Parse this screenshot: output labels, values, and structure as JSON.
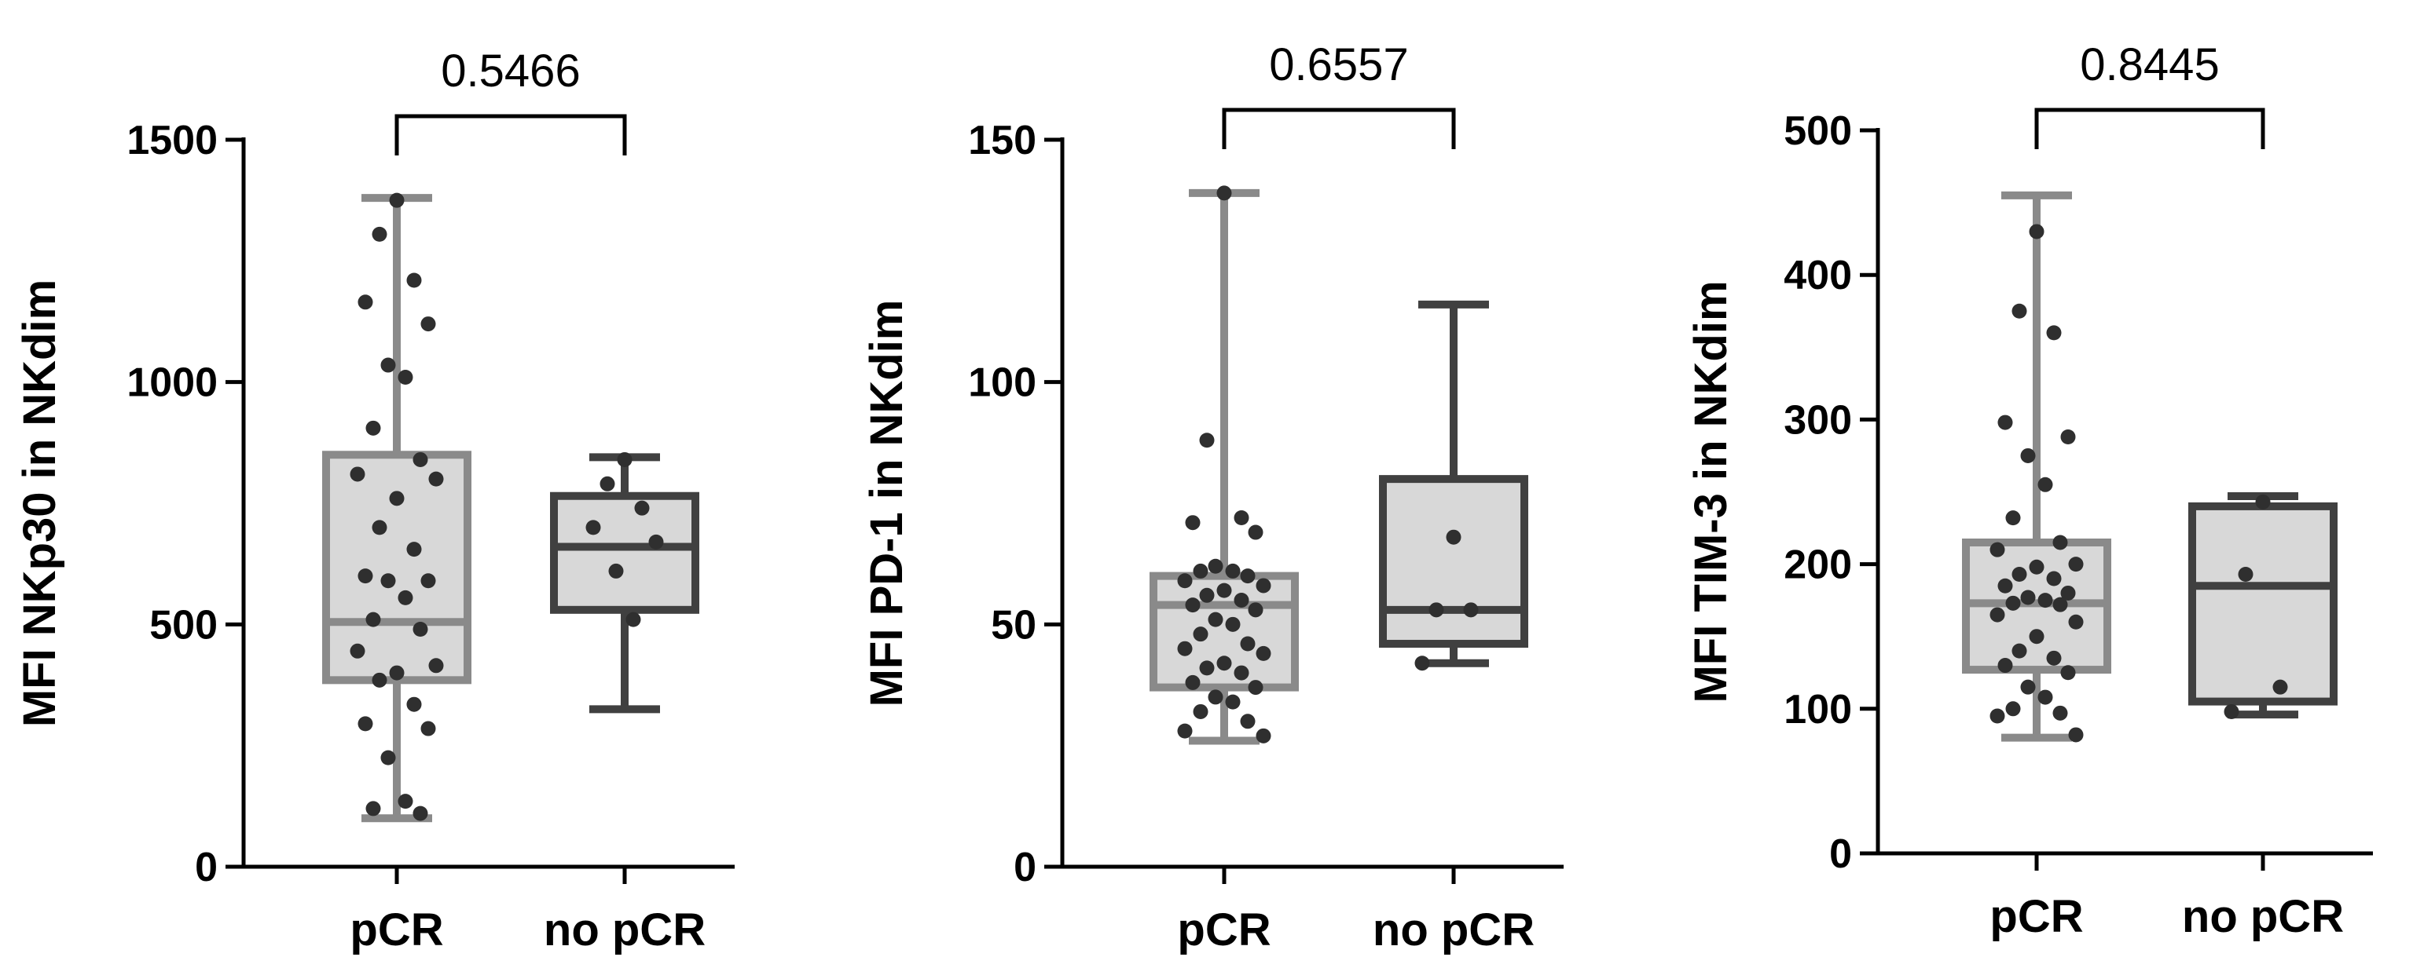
{
  "colors": {
    "pcr_stroke": "#8a8a8a",
    "no_pcr_stroke": "#404040",
    "box_fill": "#d8d8d8",
    "dot": "#2f2f2f"
  },
  "chart_data": [
    {
      "type": "box",
      "ylabel": "MFI NKp30 in NKdim",
      "ylim": [
        0,
        1500
      ],
      "yticks": [
        0,
        500,
        1000,
        1500
      ],
      "categories": [
        "pCR",
        "no pCR"
      ],
      "p_value": "0.5466",
      "boxes": [
        {
          "name": "pCR",
          "min": 100,
          "q1": 385,
          "median": 505,
          "q3": 850,
          "max": 1380,
          "points": [
            1375,
            1305,
            1210,
            1165,
            1120,
            1035,
            1010,
            905,
            840,
            810,
            800,
            760,
            700,
            655,
            600,
            590,
            590,
            555,
            510,
            490,
            445,
            415,
            400,
            385,
            335,
            295,
            285,
            225,
            135,
            120,
            110
          ]
        },
        {
          "name": "no pCR",
          "min": 325,
          "q1": 530,
          "median": 660,
          "q3": 765,
          "max": 845,
          "points": [
            840,
            790,
            740,
            700,
            670,
            610,
            510
          ]
        }
      ]
    },
    {
      "type": "box",
      "ylabel": "MFI PD-1 in NKdim",
      "ylim": [
        0,
        150
      ],
      "yticks": [
        0,
        50,
        100,
        150
      ],
      "categories": [
        "pCR",
        "no pCR"
      ],
      "p_value": "0.6557",
      "boxes": [
        {
          "name": "pCR",
          "min": 26,
          "q1": 37,
          "median": 54,
          "q3": 60,
          "max": 139,
          "points": [
            139,
            88,
            72,
            71,
            69,
            62,
            61,
            61,
            60,
            59,
            58,
            57,
            56,
            55,
            54,
            53,
            51,
            50,
            48,
            46,
            45,
            44,
            42,
            41,
            40,
            38,
            37,
            35,
            34,
            32,
            30,
            28,
            27
          ]
        },
        {
          "name": "no pCR",
          "min": 42,
          "q1": 46,
          "median": 53,
          "q3": 80,
          "max": 116,
          "points": [
            68,
            53,
            53,
            42
          ]
        }
      ]
    },
    {
      "type": "box",
      "ylabel": "MFI TIM-3 in NKdim",
      "ylim": [
        0,
        500
      ],
      "yticks": [
        0,
        100,
        200,
        300,
        400,
        500
      ],
      "categories": [
        "pCR",
        "no pCR"
      ],
      "p_value": "0.8445",
      "boxes": [
        {
          "name": "pCR",
          "min": 80,
          "q1": 127,
          "median": 173,
          "q3": 215,
          "max": 455,
          "points": [
            430,
            375,
            360,
            298,
            288,
            275,
            255,
            232,
            215,
            210,
            200,
            198,
            193,
            190,
            185,
            180,
            177,
            175,
            173,
            172,
            165,
            160,
            150,
            140,
            135,
            130,
            125,
            115,
            108,
            100,
            97,
            95,
            82
          ]
        },
        {
          "name": "no pCR",
          "min": 96,
          "q1": 105,
          "median": 185,
          "q3": 240,
          "max": 247,
          "points": [
            243,
            193,
            115,
            98
          ]
        }
      ]
    }
  ]
}
